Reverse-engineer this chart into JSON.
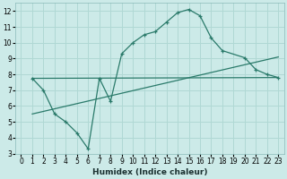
{
  "xlabel": "Humidex (Indice chaleur)",
  "bg_color": "#cceae8",
  "grid_color": "#b0d8d4",
  "line_color": "#2a7a6a",
  "xlim": [
    -0.5,
    23.5
  ],
  "ylim": [
    3,
    12.5
  ],
  "xticks": [
    0,
    1,
    2,
    3,
    4,
    5,
    6,
    7,
    8,
    9,
    10,
    11,
    12,
    13,
    14,
    15,
    16,
    17,
    18,
    19,
    20,
    21,
    22,
    23
  ],
  "yticks": [
    3,
    4,
    5,
    6,
    7,
    8,
    9,
    10,
    11,
    12
  ],
  "curve_x": [
    1,
    2,
    3,
    4,
    5,
    6,
    7,
    8,
    9,
    10,
    11,
    12,
    13,
    14,
    15,
    16,
    17,
    18,
    20,
    21,
    22,
    23
  ],
  "curve_y": [
    7.75,
    7.0,
    5.5,
    5.0,
    4.3,
    3.3,
    7.75,
    6.3,
    9.3,
    10.0,
    10.5,
    10.7,
    11.3,
    11.9,
    12.1,
    11.7,
    10.3,
    9.5,
    9.05,
    8.3,
    8.0,
    7.8
  ],
  "line1_x": [
    1,
    23
  ],
  "line1_y": [
    7.75,
    7.8
  ],
  "line2_x": [
    1,
    23
  ],
  "line2_y": [
    5.5,
    9.1
  ]
}
